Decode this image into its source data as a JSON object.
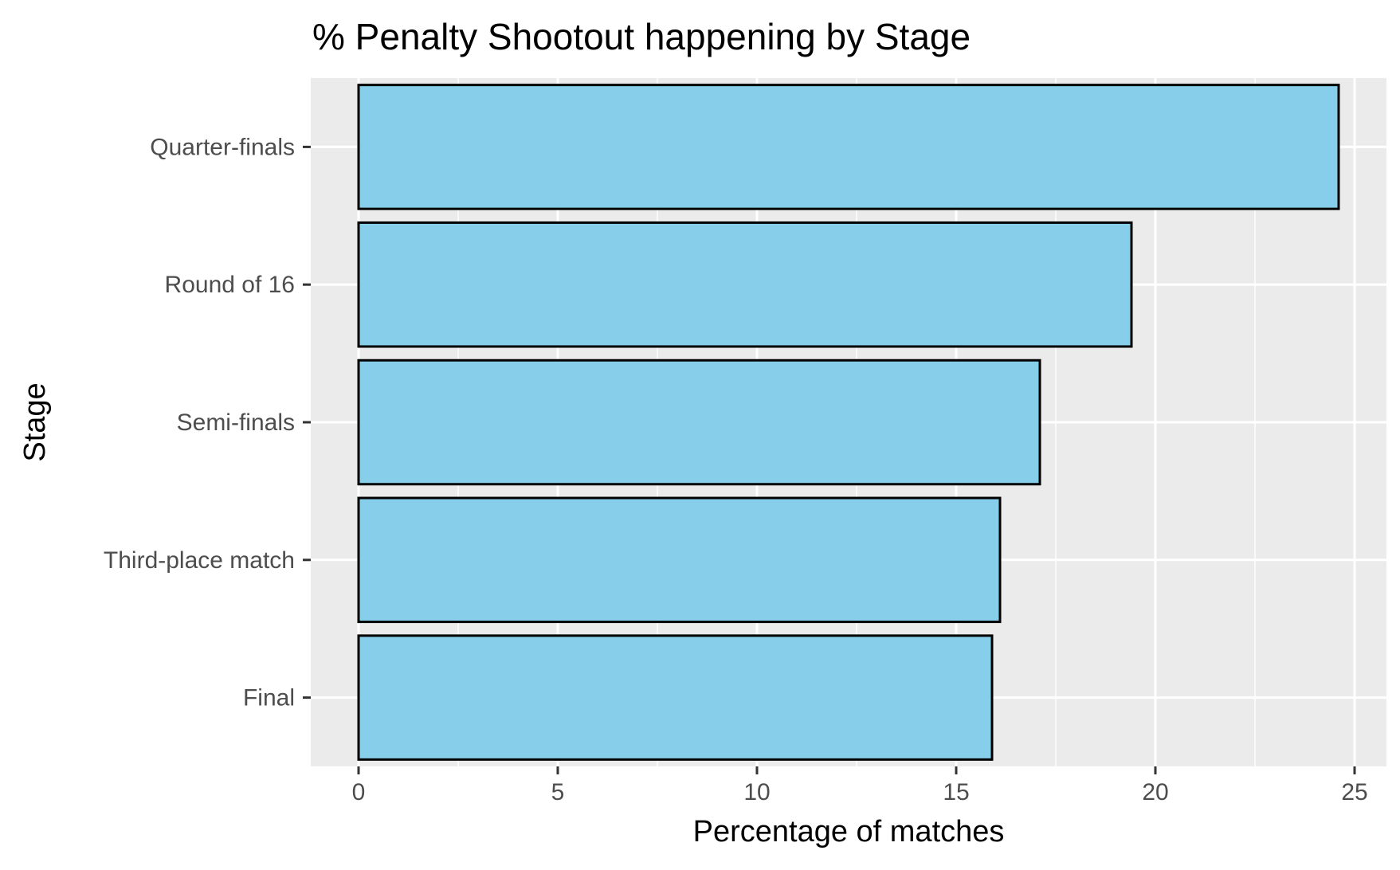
{
  "chart_data": {
    "type": "bar",
    "orientation": "horizontal",
    "title": "% Penalty Shootout happening by Stage",
    "xlabel": "Percentage of matches",
    "ylabel": "Stage",
    "categories": [
      "Quarter-finals",
      "Round of 16",
      "Semi-finals",
      "Third-place match",
      "Final"
    ],
    "values": [
      24.6,
      19.4,
      17.1,
      16.1,
      15.9
    ],
    "xlim": [
      -1.2,
      25.8
    ],
    "xticks": [
      0,
      5,
      10,
      15,
      20,
      25
    ],
    "xtick_labels": [
      "0",
      "5",
      "10",
      "15",
      "20",
      "25"
    ],
    "grid": true,
    "legend": "none",
    "colors": {
      "bar_fill": "#87CEEB",
      "bar_stroke": "#000000",
      "panel_background": "#EBEBEB",
      "grid_line": "#FFFFFF",
      "tick_mark": "#333333",
      "tick_label": "#4D4D4D"
    }
  }
}
